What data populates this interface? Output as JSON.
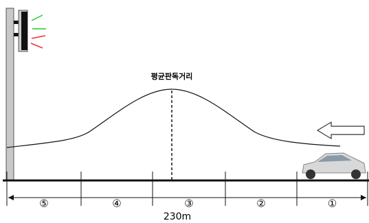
{
  "label": "평균판독거리",
  "segments": [
    "⑤",
    "④",
    "③",
    "②",
    "①"
  ],
  "distance": "230m"
}
